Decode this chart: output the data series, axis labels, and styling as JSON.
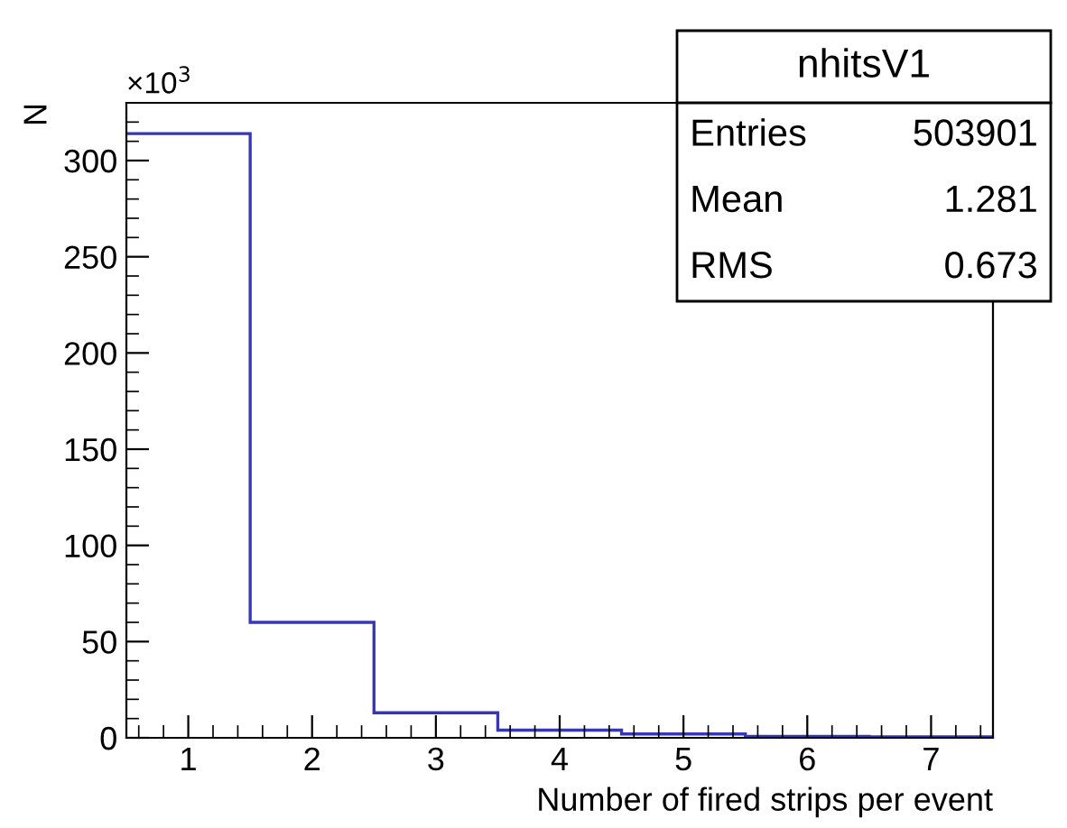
{
  "chart_data": {
    "type": "histogram",
    "title": "nhitsV1",
    "xlabel": "Number of fired strips per event",
    "ylabel": "N",
    "bins": [
      0.5,
      1.5,
      2.5,
      3.5,
      4.5,
      5.5,
      6.5,
      7.5
    ],
    "values": [
      314,
      60,
      13,
      4,
      2,
      0.7,
      0.5
    ],
    "color": "#3737b5",
    "xlim": [
      0.5,
      7.5
    ],
    "xticks": [
      1,
      2,
      3,
      4,
      5,
      6,
      7
    ],
    "ylim": [
      0,
      330
    ],
    "yticks": [
      0,
      50,
      100,
      150,
      200,
      250,
      300
    ],
    "grid": false,
    "legend": false,
    "annotations": [
      "×10$^{3}$",
      "Entries",
      "503901",
      "Mean",
      "1.281",
      "RMS",
      "0.673"
    ]
  }
}
